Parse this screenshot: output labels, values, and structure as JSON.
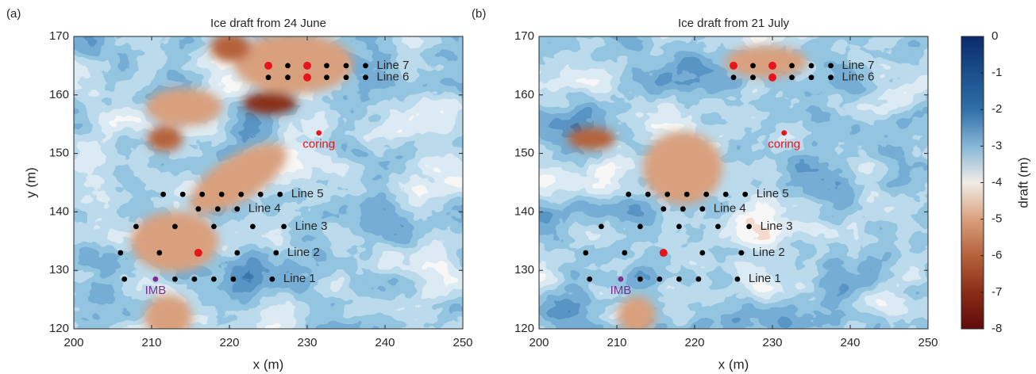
{
  "chart_data": [
    {
      "type": "scatter",
      "panel_label": "(a)",
      "title": "Ice draft from 24 June",
      "x_label": "x (m)",
      "y_label": "y (m)",
      "xlim": [
        200,
        250
      ],
      "ylim": [
        120,
        170
      ],
      "xticks": [
        200,
        210,
        220,
        230,
        240,
        250
      ],
      "yticks": [
        120,
        130,
        140,
        150,
        160,
        170
      ],
      "series": [
        {
          "name": "Line 7",
          "label_position": "right",
          "color": "#000000",
          "x": [
            225,
            227.5,
            230,
            232.5,
            235,
            237.5
          ],
          "y": [
            165,
            165,
            165,
            165,
            165,
            165
          ],
          "colors": [
            "#e8141c",
            "#000000",
            "#e8141c",
            "#000000",
            "#000000",
            "#000000"
          ]
        },
        {
          "name": "Line 6",
          "label_position": "right",
          "color": "#000000",
          "x": [
            225,
            227.5,
            230,
            232.5,
            235,
            237.5
          ],
          "y": [
            163,
            163,
            163,
            163,
            163,
            163
          ],
          "colors": [
            "#000000",
            "#000000",
            "#e8141c",
            "#000000",
            "#000000",
            "#000000"
          ]
        },
        {
          "name": "coring",
          "label_position": "below",
          "color": "#e8141c",
          "x": [
            231.5
          ],
          "y": [
            153.5
          ],
          "colors": [
            "#e8141c"
          ]
        },
        {
          "name": "Line 5",
          "label_position": "right",
          "color": "#000000",
          "x": [
            211.5,
            214,
            216.5,
            219,
            221.5,
            224,
            226.5
          ],
          "y": [
            143,
            143,
            143,
            143,
            143,
            143,
            143
          ],
          "colors": [
            "#000000",
            "#000000",
            "#000000",
            "#000000",
            "#000000",
            "#000000",
            "#000000"
          ]
        },
        {
          "name": "Line 4",
          "label_position": "right",
          "color": "#000000",
          "x": [
            216,
            218.5,
            221
          ],
          "y": [
            140.5,
            140.5,
            140.5
          ],
          "colors": [
            "#000000",
            "#000000",
            "#000000"
          ]
        },
        {
          "name": "Line 3",
          "label_position": "right",
          "color": "#000000",
          "x": [
            208,
            213,
            218,
            223,
            227
          ],
          "y": [
            137.5,
            137.5,
            137.5,
            137.5,
            137.5
          ],
          "colors": [
            "#000000",
            "#000000",
            "#000000",
            "#000000",
            "#000000"
          ]
        },
        {
          "name": "Line 2",
          "label_position": "right",
          "color": "#000000",
          "x": [
            206,
            211,
            216,
            221,
            226
          ],
          "y": [
            133,
            133,
            133,
            133,
            133
          ],
          "colors": [
            "#000000",
            "#000000",
            "#e8141c",
            "#000000",
            "#000000"
          ]
        },
        {
          "name": "Line 1",
          "label_position": "right",
          "color": "#000000",
          "x": [
            206.5,
            213,
            215.5,
            218,
            220.5,
            225.5
          ],
          "y": [
            128.5,
            128.5,
            128.5,
            128.5,
            128.5,
            128.5
          ],
          "colors": [
            "#000000",
            "#000000",
            "#000000",
            "#000000",
            "#000000",
            "#000000"
          ]
        },
        {
          "name": "IMB",
          "label_position": "below",
          "color": "#7e2f8e",
          "x": [
            210.5
          ],
          "y": [
            128.5
          ],
          "colors": [
            "#7e2f8e"
          ]
        }
      ]
    },
    {
      "type": "scatter",
      "panel_label": "(b)",
      "title": "Ice draft from 21 July",
      "x_label": "x (m)",
      "xlim": [
        200,
        250
      ],
      "ylim": [
        120,
        170
      ],
      "xticks": [
        200,
        210,
        220,
        230,
        240,
        250
      ],
      "yticks": [
        120,
        130,
        140,
        150,
        160,
        170
      ],
      "series": [
        {
          "name": "Line 7",
          "label_position": "right",
          "color": "#000000",
          "x": [
            225,
            227.5,
            230,
            232.5,
            235,
            237.5
          ],
          "y": [
            165,
            165,
            165,
            165,
            165,
            165
          ],
          "colors": [
            "#e8141c",
            "#000000",
            "#e8141c",
            "#000000",
            "#000000",
            "#000000"
          ]
        },
        {
          "name": "Line 6",
          "label_position": "right",
          "color": "#000000",
          "x": [
            225,
            227.5,
            230,
            232.5,
            235,
            237.5
          ],
          "y": [
            163,
            163,
            163,
            163,
            163,
            163
          ],
          "colors": [
            "#000000",
            "#000000",
            "#e8141c",
            "#000000",
            "#000000",
            "#000000"
          ]
        },
        {
          "name": "coring",
          "label_position": "below",
          "color": "#e8141c",
          "x": [
            231.5
          ],
          "y": [
            153.5
          ],
          "colors": [
            "#e8141c"
          ]
        },
        {
          "name": "Line 5",
          "label_position": "right",
          "color": "#000000",
          "x": [
            211.5,
            214,
            216.5,
            219,
            221.5,
            224,
            226.5
          ],
          "y": [
            143,
            143,
            143,
            143,
            143,
            143,
            143
          ],
          "colors": [
            "#000000",
            "#000000",
            "#000000",
            "#000000",
            "#000000",
            "#000000",
            "#000000"
          ]
        },
        {
          "name": "Line 4",
          "label_position": "right",
          "color": "#000000",
          "x": [
            216,
            218.5,
            221
          ],
          "y": [
            140.5,
            140.5,
            140.5
          ],
          "colors": [
            "#000000",
            "#000000",
            "#000000"
          ]
        },
        {
          "name": "Line 3",
          "label_position": "right",
          "color": "#000000",
          "x": [
            208,
            213,
            218,
            223,
            227
          ],
          "y": [
            137.5,
            137.5,
            137.5,
            137.5,
            137.5
          ],
          "colors": [
            "#000000",
            "#000000",
            "#000000",
            "#000000",
            "#000000"
          ]
        },
        {
          "name": "Line 2",
          "label_position": "right",
          "color": "#000000",
          "x": [
            206,
            211,
            216,
            221,
            226
          ],
          "y": [
            133,
            133,
            133,
            133,
            133
          ],
          "colors": [
            "#000000",
            "#000000",
            "#e8141c",
            "#000000",
            "#000000"
          ]
        },
        {
          "name": "Line 1",
          "label_position": "right",
          "color": "#000000",
          "x": [
            206.5,
            213,
            215.5,
            218,
            220.5,
            225.5
          ],
          "y": [
            128.5,
            128.5,
            128.5,
            128.5,
            128.5,
            128.5
          ],
          "colors": [
            "#000000",
            "#000000",
            "#000000",
            "#000000",
            "#000000",
            "#000000"
          ]
        },
        {
          "name": "IMB",
          "label_position": "below",
          "color": "#7e2f8e",
          "x": [
            210.5
          ],
          "y": [
            128.5
          ],
          "colors": [
            "#7e2f8e"
          ]
        }
      ],
      "colorbar": {
        "label": "draft (m)",
        "lim": [
          -8,
          0
        ],
        "ticks": [
          0,
          -1,
          -2,
          -3,
          -4,
          -5,
          -6,
          -7,
          -8
        ],
        "colors": [
          "#5e0a0a",
          "#8a2d17",
          "#b5623b",
          "#d9a07e",
          "#f2ece6",
          "#86b6d6",
          "#2f6fa8",
          "#1a4f8c",
          "#0b2a6b"
        ]
      }
    }
  ]
}
